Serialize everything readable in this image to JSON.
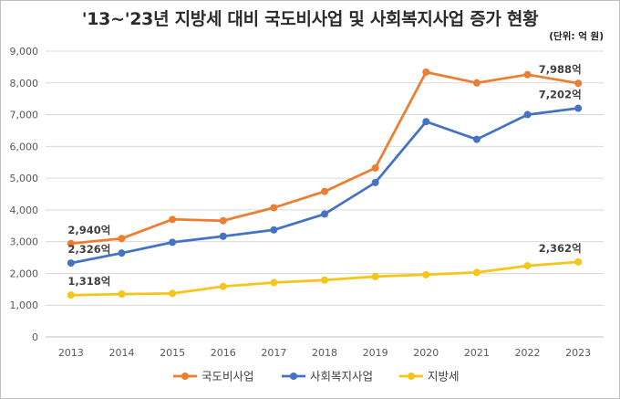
{
  "chart_data": {
    "type": "line",
    "title": "'13~'23년 지방세 대비 국도비사업 및 사회복지사업 증가 현황",
    "unit_note": "(단위: 억 원)",
    "categories": [
      "2013",
      "2014",
      "2015",
      "2016",
      "2017",
      "2018",
      "2019",
      "2020",
      "2021",
      "2022",
      "2023"
    ],
    "y_ticks": [
      "0",
      "1,000",
      "2,000",
      "3,000",
      "4,000",
      "5,000",
      "6,000",
      "7,000",
      "8,000",
      "9,000"
    ],
    "ylim": [
      0,
      9000
    ],
    "grid": true,
    "legend_position": "bottom",
    "series": [
      {
        "name": "국도비사업",
        "color": "#ED7D31",
        "values": [
          2940,
          3100,
          3700,
          3660,
          4070,
          4580,
          5320,
          8340,
          8000,
          8260,
          7988
        ]
      },
      {
        "name": "사회복지사업",
        "color": "#4472C4",
        "values": [
          2326,
          2640,
          2980,
          3170,
          3370,
          3870,
          4860,
          6780,
          6220,
          7000,
          7202
        ]
      },
      {
        "name": "지방세",
        "color": "#F5C518",
        "values": [
          1318,
          1350,
          1370,
          1590,
          1710,
          1790,
          1900,
          1960,
          2030,
          2240,
          2362
        ]
      }
    ],
    "annotations": [
      {
        "series": 0,
        "index": 0,
        "text": "2,940억"
      },
      {
        "series": 1,
        "index": 0,
        "text": "2,326억"
      },
      {
        "series": 2,
        "index": 0,
        "text": "1,318억"
      },
      {
        "series": 0,
        "index": 10,
        "text": "7,988억"
      },
      {
        "series": 1,
        "index": 10,
        "text": "7,202억"
      },
      {
        "series": 2,
        "index": 10,
        "text": "2,362억"
      }
    ]
  }
}
